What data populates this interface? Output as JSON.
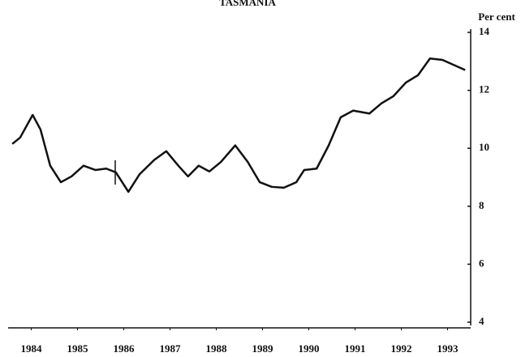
{
  "chart_data": {
    "type": "line",
    "title": "TASMANIA",
    "y_label": "Per cent",
    "x": [
      1984.09,
      1984.26,
      1984.53,
      1984.7,
      1984.91,
      1985.14,
      1985.37,
      1985.63,
      1985.89,
      1986.12,
      1986.33,
      1986.6,
      1986.84,
      1987.16,
      1987.42,
      1987.68,
      1987.89,
      1988.12,
      1988.35,
      1988.6,
      1988.91,
      1989.18,
      1989.44,
      1989.7,
      1989.96,
      1990.23,
      1990.4,
      1990.67,
      1990.93,
      1991.19,
      1991.46,
      1991.81,
      1992.07,
      1992.33,
      1992.6,
      1992.86,
      1993.12,
      1993.39,
      1993.88
    ],
    "series": [
      {
        "color": "#111111",
        "values": [
          10.15,
          10.37,
          11.15,
          10.65,
          9.4,
          8.83,
          9.03,
          9.4,
          9.25,
          9.3,
          9.17,
          8.5,
          9.1,
          9.6,
          9.9,
          9.4,
          9.03,
          9.4,
          9.2,
          9.53,
          10.1,
          9.53,
          8.83,
          8.67,
          8.64,
          8.83,
          9.25,
          9.3,
          10.1,
          11.07,
          11.3,
          11.2,
          11.55,
          11.8,
          12.27,
          12.52,
          13.1,
          13.05,
          12.7
        ]
      }
    ],
    "xlim": [
      1984,
      1994
    ],
    "xticks": [
      {
        "value": 1984.5,
        "label": "1984"
      },
      {
        "value": 1985.5,
        "label": "1985"
      },
      {
        "value": 1986.5,
        "label": "1986"
      },
      {
        "value": 1987.5,
        "label": "1987"
      },
      {
        "value": 1988.5,
        "label": "1988"
      },
      {
        "value": 1989.5,
        "label": "1989"
      },
      {
        "value": 1990.5,
        "label": "1990"
      },
      {
        "value": 1991.5,
        "label": "1991"
      },
      {
        "value": 1992.5,
        "label": "1992"
      },
      {
        "value": 1993.5,
        "label": "1993"
      }
    ],
    "ylim": [
      4,
      14
    ],
    "yticks": [
      4,
      6,
      8,
      10,
      12,
      14
    ]
  }
}
